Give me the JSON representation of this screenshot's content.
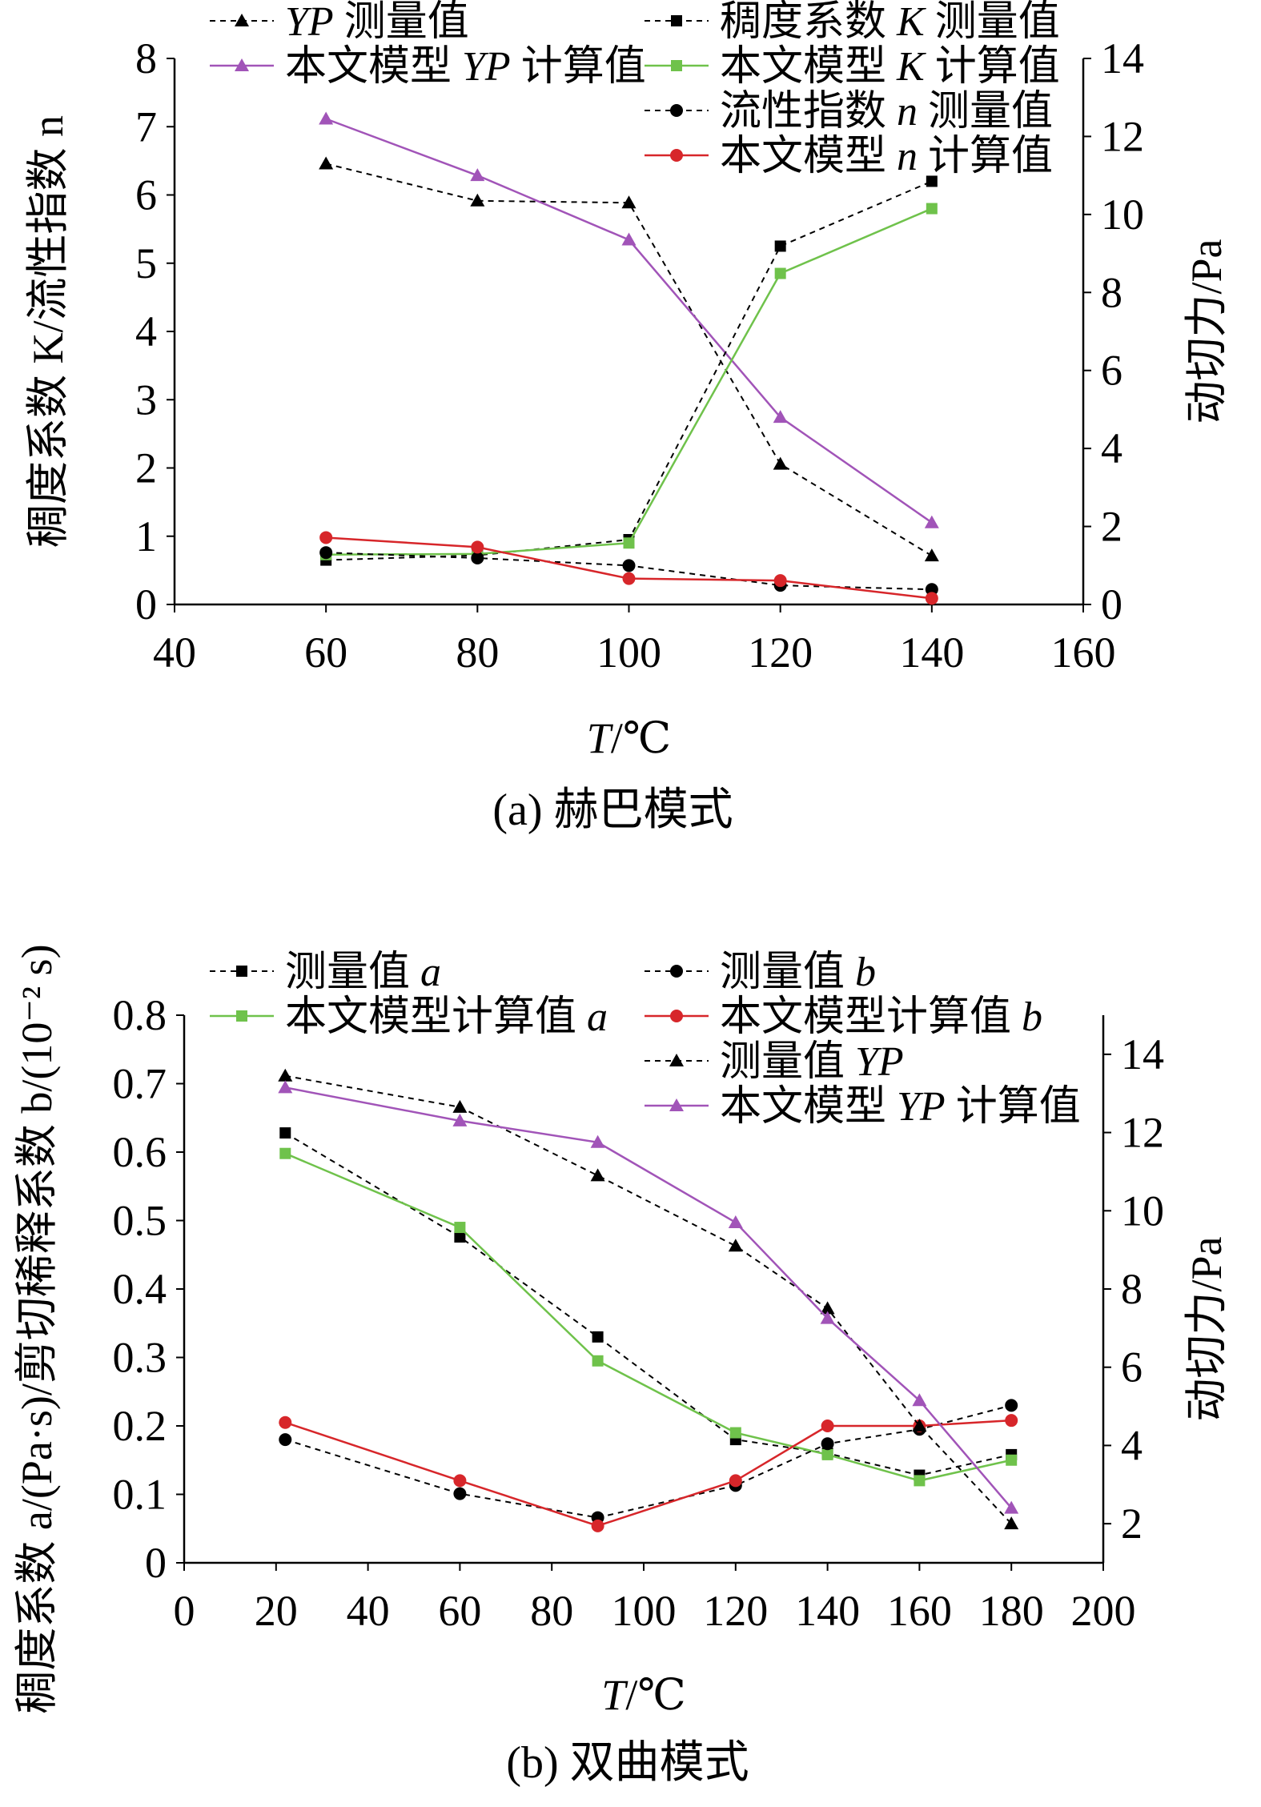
{
  "charts": [
    {
      "caption": "(a) 赫巴模式",
      "xlabel_var": "T",
      "xlabel_unit": "/℃",
      "ylabel_left": "稠度系数 K/流性指数 n",
      "ylabel_right": "动切力/Pa",
      "xticks": [
        "40",
        "60",
        "80",
        "100",
        "120",
        "140",
        "160"
      ],
      "yticks_left": [
        "0",
        "1",
        "2",
        "3",
        "4",
        "5",
        "6",
        "7",
        "8"
      ],
      "yticks_right": [
        "0",
        "2",
        "4",
        "6",
        "8",
        "10",
        "12",
        "14"
      ],
      "legend": [
        {
          "series": "YP 测量值",
          "parts": [
            {
              "t": "YP",
              "i": true
            },
            {
              "t": " 测量值",
              "i": false
            }
          ],
          "color": "#000000",
          "marker": "triangle",
          "dashed": true
        },
        {
          "series": "本文模型 YP 计算值",
          "parts": [
            {
              "t": "本文模型 ",
              "i": false
            },
            {
              "t": "YP",
              "i": true
            },
            {
              "t": " 计算值",
              "i": false
            }
          ],
          "color": "#a154b8",
          "marker": "triangle",
          "dashed": false
        },
        {
          "series": "稠度系数 K 测量值",
          "parts": [
            {
              "t": "稠度系数 ",
              "i": false
            },
            {
              "t": "K",
              "i": true
            },
            {
              "t": " 测量值",
              "i": false
            }
          ],
          "color": "#000000",
          "marker": "square",
          "dashed": true
        },
        {
          "series": "本文模型 K 计算值",
          "parts": [
            {
              "t": "本文模型 ",
              "i": false
            },
            {
              "t": "K",
              "i": true
            },
            {
              "t": " 计算值",
              "i": false
            }
          ],
          "color": "#6fc24b",
          "marker": "square",
          "dashed": false
        },
        {
          "series": "流性指数 n 测量值",
          "parts": [
            {
              "t": "流性指数 ",
              "i": false
            },
            {
              "t": "n",
              "i": true
            },
            {
              "t": " 测量值",
              "i": false
            }
          ],
          "color": "#000000",
          "marker": "circle",
          "dashed": true
        },
        {
          "series": "本文模型 n 计算值",
          "parts": [
            {
              "t": "本文模型 ",
              "i": false
            },
            {
              "t": "n",
              "i": true
            },
            {
              "t": " 计算值",
              "i": false
            }
          ],
          "color": "#d7262a",
          "marker": "circle",
          "dashed": false
        }
      ]
    },
    {
      "caption": "(b) 双曲模式",
      "xlabel_var": "T",
      "xlabel_unit": "/℃",
      "ylabel_left": "稠度系数 a/(Pa·s)/剪切稀释系数 b/(10⁻² s)",
      "ylabel_right": "动切力/Pa",
      "xticks": [
        "0",
        "20",
        "40",
        "60",
        "80",
        "100",
        "120",
        "140",
        "160",
        "180",
        "200"
      ],
      "yticks_left": [
        "0",
        "0.1",
        "0.2",
        "0.3",
        "0.4",
        "0.5",
        "0.6",
        "0.7",
        "0.8"
      ],
      "yticks_right": [
        "2",
        "4",
        "6",
        "8",
        "10",
        "12",
        "14"
      ],
      "legend": [
        {
          "series": "测量值 a",
          "parts": [
            {
              "t": "测量值 ",
              "i": false
            },
            {
              "t": "a",
              "i": true
            }
          ],
          "color": "#000000",
          "marker": "square",
          "dashed": true
        },
        {
          "series": "本文模型计算值 a",
          "parts": [
            {
              "t": "本文模型计算值 ",
              "i": false
            },
            {
              "t": "a",
              "i": true
            }
          ],
          "color": "#6fc24b",
          "marker": "square",
          "dashed": false
        },
        {
          "series": "测量值 b",
          "parts": [
            {
              "t": "测量值 ",
              "i": false
            },
            {
              "t": "b",
              "i": true
            }
          ],
          "color": "#000000",
          "marker": "circle",
          "dashed": true
        },
        {
          "series": "本文模型计算值 b",
          "parts": [
            {
              "t": "本文模型计算值 ",
              "i": false
            },
            {
              "t": "b",
              "i": true
            }
          ],
          "color": "#d7262a",
          "marker": "circle",
          "dashed": false
        },
        {
          "series": "测量值 YP",
          "parts": [
            {
              "t": "测量值 ",
              "i": false
            },
            {
              "t": "YP",
              "i": true
            }
          ],
          "color": "#000000",
          "marker": "triangle",
          "dashed": true
        },
        {
          "series": "本文模型 YP 计算值",
          "parts": [
            {
              "t": "本文模型 ",
              "i": false
            },
            {
              "t": "YP",
              "i": true
            },
            {
              "t": " 计算值",
              "i": false
            }
          ],
          "color": "#a154b8",
          "marker": "triangle",
          "dashed": false
        }
      ]
    }
  ],
  "chart_data": [
    {
      "type": "line",
      "title": "(a) 赫巴模式",
      "xlabel": "T/℃",
      "ylabel": "稠度系数 K/流性指数 n",
      "y2label": "动切力/Pa",
      "xlim": [
        40,
        160
      ],
      "ylim": [
        0,
        8
      ],
      "y2lim": [
        0,
        14
      ],
      "grid": false,
      "legend_position": "top",
      "series": [
        {
          "name": "YP 测量值",
          "axis": "right",
          "x": [
            60,
            80,
            100,
            120,
            140
          ],
          "y": [
            11.3,
            10.35,
            10.3,
            3.6,
            1.25
          ]
        },
        {
          "name": "本文模型 YP 计算值",
          "axis": "right",
          "x": [
            60,
            80,
            100,
            120,
            140
          ],
          "y": [
            12.45,
            11.0,
            9.35,
            4.8,
            2.1
          ]
        },
        {
          "name": "稠度系数 K 测量值",
          "axis": "left",
          "x": [
            60,
            80,
            100,
            120,
            140
          ],
          "y": [
            0.65,
            0.72,
            0.95,
            5.25,
            6.2
          ]
        },
        {
          "name": "本文模型 K 计算值",
          "axis": "left",
          "x": [
            60,
            80,
            100,
            120,
            140
          ],
          "y": [
            0.73,
            0.74,
            0.9,
            4.85,
            5.8
          ]
        },
        {
          "name": "流性指数 n 测量值",
          "axis": "left",
          "x": [
            60,
            80,
            100,
            120,
            140
          ],
          "y": [
            0.76,
            0.68,
            0.57,
            0.28,
            0.22
          ]
        },
        {
          "name": "本文模型 n 计算值",
          "axis": "left",
          "x": [
            60,
            80,
            100,
            120,
            140
          ],
          "y": [
            0.98,
            0.84,
            0.38,
            0.35,
            0.09
          ]
        }
      ]
    },
    {
      "type": "line",
      "title": "(b) 双曲模式",
      "xlabel": "T/℃",
      "ylabel": "稠度系数 a/(Pa·s)/剪切稀释系数 b/(10⁻² s)",
      "y2label": "动切力/Pa",
      "xlim": [
        0,
        200
      ],
      "ylim": [
        0,
        0.8
      ],
      "y2lim": [
        1,
        15
      ],
      "grid": false,
      "legend_position": "top",
      "series": [
        {
          "name": "测量值 a",
          "axis": "left",
          "x": [
            22,
            60,
            90,
            120,
            140,
            160,
            180
          ],
          "y": [
            0.628,
            0.476,
            0.33,
            0.18,
            0.16,
            0.128,
            0.158
          ]
        },
        {
          "name": "本文模型计算值 a",
          "axis": "left",
          "x": [
            22,
            60,
            90,
            120,
            140,
            160,
            180
          ],
          "y": [
            0.598,
            0.49,
            0.295,
            0.19,
            0.158,
            0.12,
            0.15
          ]
        },
        {
          "name": "测量值 b",
          "axis": "left",
          "x": [
            22,
            60,
            90,
            120,
            140,
            160,
            180
          ],
          "y": [
            0.18,
            0.101,
            0.066,
            0.113,
            0.174,
            0.195,
            0.23
          ]
        },
        {
          "name": "本文模型计算值 b",
          "axis": "left",
          "x": [
            22,
            60,
            90,
            120,
            140,
            160,
            180
          ],
          "y": [
            0.205,
            0.12,
            0.054,
            0.12,
            0.2,
            0.2,
            0.208
          ]
        },
        {
          "name": "测量值 YP",
          "axis": "right",
          "x": [
            22,
            60,
            90,
            120,
            140,
            160,
            180
          ],
          "y": [
            13.45,
            12.65,
            10.9,
            9.1,
            7.5,
            4.5,
            2.0
          ]
        },
        {
          "name": "本文模型 YP 计算值",
          "axis": "right",
          "x": [
            22,
            60,
            90,
            120,
            140,
            160,
            180
          ],
          "y": [
            13.15,
            12.3,
            11.75,
            9.7,
            7.25,
            5.15,
            2.4
          ]
        }
      ]
    }
  ]
}
